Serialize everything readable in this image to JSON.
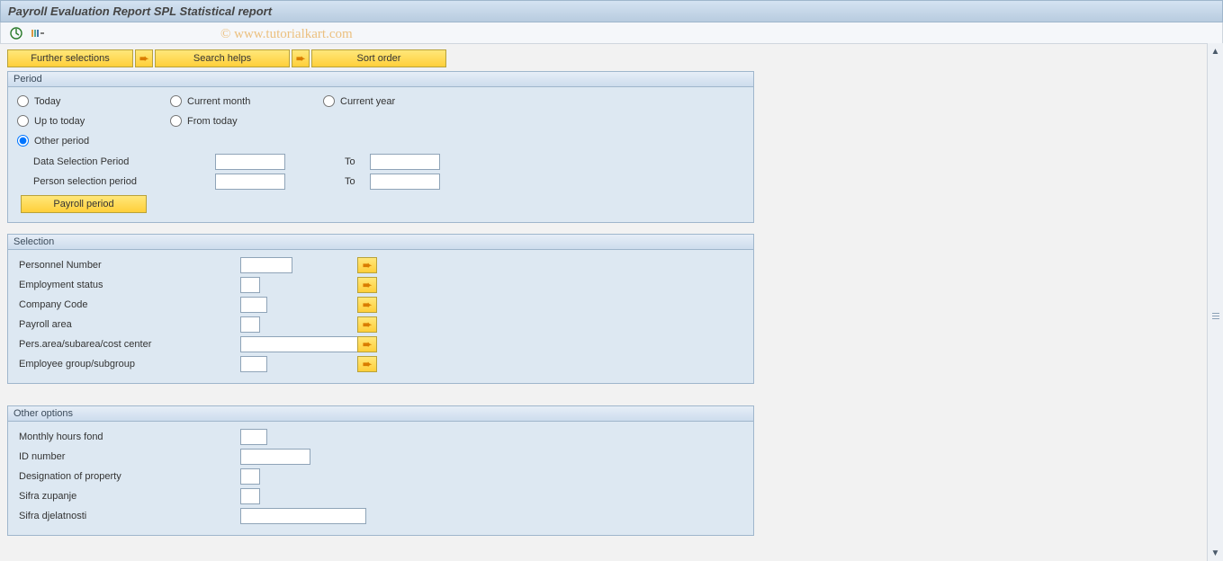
{
  "colors": {
    "titlebar_bg_top": "#d4e3f2",
    "titlebar_bg_bottom": "#b8ccdf",
    "group_bg": "#dde8f2",
    "group_border": "#9fb6cc",
    "button_bg_top": "#ffe77a",
    "button_bg_bottom": "#ffcf3a",
    "button_border": "#b8a23a",
    "input_border": "#8fa4b8"
  },
  "title": "Payroll Evaluation Report SPL Statistical report",
  "watermark": "© www.tutorialkart.com",
  "toolbar": {
    "execute_icon": "execute",
    "variant_icon": "variant"
  },
  "top_buttons": {
    "further_selections": "Further selections",
    "search_helps": "Search helps",
    "sort_order": "Sort order"
  },
  "period_group": {
    "title": "Period",
    "radios": {
      "today": "Today",
      "current_month": "Current month",
      "current_year": "Current year",
      "up_to_today": "Up to today",
      "from_today": "From today",
      "other_period": "Other period"
    },
    "selected": "other_period",
    "data_selection_label": "Data Selection Period",
    "person_selection_label": "Person selection period",
    "to_label": "To",
    "data_from": "",
    "data_to": "",
    "person_from": "",
    "person_to": "",
    "payroll_period_btn": "Payroll period"
  },
  "selection_group": {
    "title": "Selection",
    "rows": [
      {
        "label": "Personnel Number",
        "input_width": "w60",
        "value": ""
      },
      {
        "label": "Employment status",
        "input_width": "w20",
        "value": ""
      },
      {
        "label": "Company Code",
        "input_width": "w30",
        "value": ""
      },
      {
        "label": "Payroll area",
        "input_width": "w20",
        "value": ""
      },
      {
        "label": "Pers.area/subarea/cost center",
        "input_width": "w140",
        "value": ""
      },
      {
        "label": "Employee group/subgroup",
        "input_width": "w30",
        "value": ""
      }
    ]
  },
  "other_options_group": {
    "title": "Other options",
    "rows": [
      {
        "label": "Monthly hours fond",
        "input_width": "w30",
        "value": ""
      },
      {
        "label": "ID number",
        "input_width": "w80",
        "value": ""
      },
      {
        "label": "Designation of property",
        "input_width": "w20",
        "value": ""
      },
      {
        "label": "Sifra zupanje",
        "input_width": "w20",
        "value": ""
      },
      {
        "label": "Sifra djelatnosti",
        "input_width": "w140",
        "value": ""
      }
    ]
  }
}
